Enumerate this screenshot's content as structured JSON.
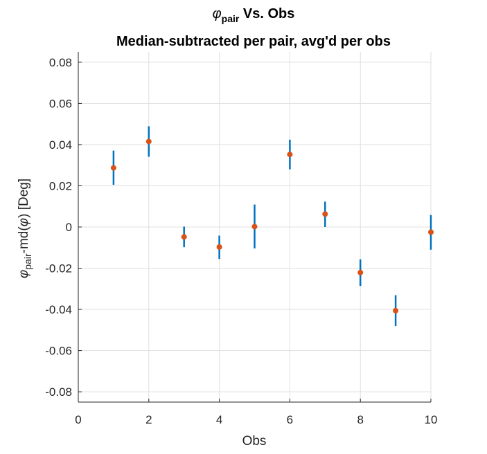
{
  "chart_data": {
    "type": "scatter",
    "title_symbol": "φ",
    "title_subscript": "pair",
    "title_rest": " Vs. Obs",
    "subtitle": "Median-subtracted per pair, avg'd per obs",
    "xlabel": "Obs",
    "ylabel_symbol": "φ",
    "ylabel_subscript": "pair",
    "ylabel_middle": "-md(",
    "ylabel_symbol2": "φ",
    "ylabel_end": ") [Deg]",
    "xlim": [
      0,
      10
    ],
    "ylim": [
      -0.085,
      0.085
    ],
    "xticks": [
      0,
      2,
      4,
      6,
      8,
      10
    ],
    "xtick_labels": [
      "0",
      "2",
      "4",
      "6",
      "8",
      "10"
    ],
    "yticks": [
      -0.08,
      -0.06,
      -0.04,
      -0.02,
      0,
      0.02,
      0.04,
      0.06,
      0.08
    ],
    "ytick_labels": [
      "-0.08",
      "-0.06",
      "-0.04",
      "-0.02",
      "0",
      "0.02",
      "0.04",
      "0.06",
      "0.08"
    ],
    "grid": true,
    "series": [
      {
        "x": [
          1,
          2,
          3,
          4,
          5,
          6,
          7,
          8,
          9,
          10
        ],
        "y": [
          0.0287,
          0.0415,
          -0.0048,
          -0.0097,
          0.0002,
          0.0352,
          0.0063,
          -0.0221,
          -0.0406,
          -0.0025
        ],
        "err_low": [
          0.0082,
          0.0074,
          0.005,
          0.0058,
          0.0106,
          0.0072,
          0.0063,
          0.0065,
          0.0075,
          0.0085
        ],
        "err_high": [
          0.0084,
          0.0074,
          0.005,
          0.0055,
          0.0107,
          0.0072,
          0.006,
          0.0064,
          0.0075,
          0.0083
        ],
        "marker_color": "#d95319",
        "errorbar_color": "#0072bd"
      }
    ]
  }
}
